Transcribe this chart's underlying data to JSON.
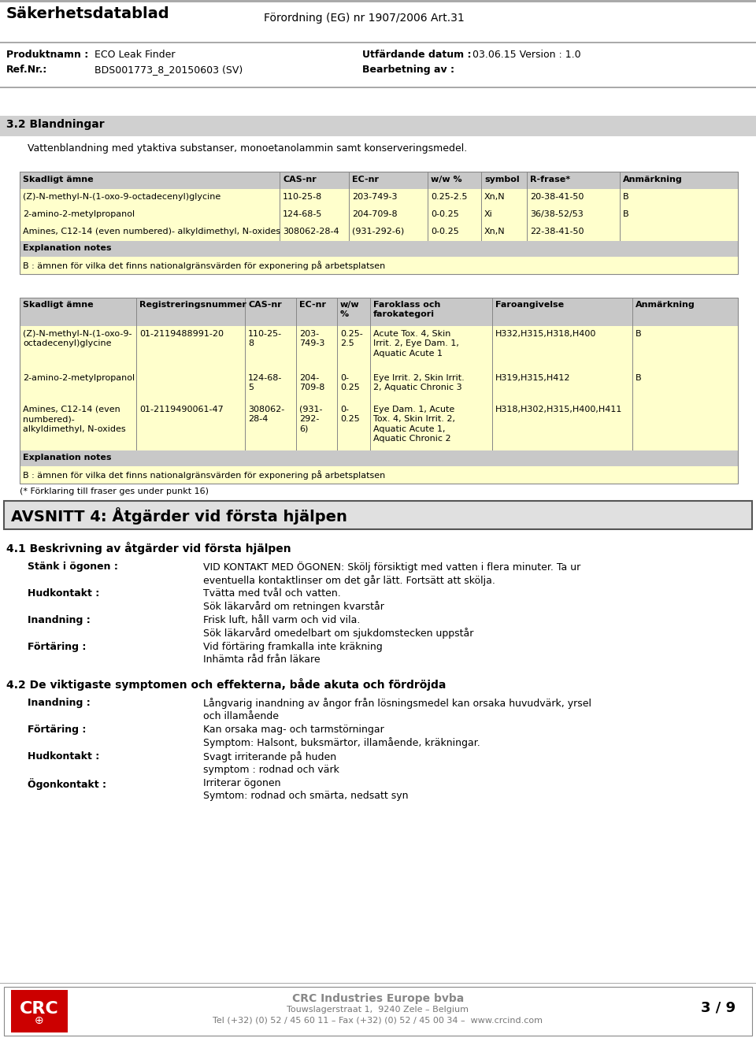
{
  "page_width": 9.6,
  "page_height": 13.18,
  "bg_color": "#ffffff",
  "header_title_left": "Säkerhetsdatablad",
  "header_title_right": "Förordning (EG) nr 1907/2006 Art.31",
  "product_label1": "Produktnamn :",
  "product_value1": "ECO Leak Finder",
  "date_label": "Utfärdande datum :",
  "date_value": "03.06.15 Version : 1.0",
  "ref_label": "Ref.Nr.:",
  "ref_value": "BDS001773_8_20150603 (SV)",
  "bearbetning_label": "Bearbetning av :",
  "section_32": "3.2 Blandningar",
  "intro_text": "Vattenblandning med ytaktiva substanser, monoetanolammin samt konserveringsmedel.",
  "table1_headers": [
    "Skadligt ämne",
    "CAS-nr",
    "EC-nr",
    "w/w %",
    "symbol",
    "R-frase*",
    "Anmärkning"
  ],
  "table1_rows": [
    [
      "(Z)-N-methyl-N-(1-oxo-9-octadecenyl)glycine",
      "110-25-8",
      "203-749-3",
      "0.25-2.5",
      "Xn,N",
      "20-38-41-50",
      "B"
    ],
    [
      "2-amino-2-metylpropanol",
      "124-68-5",
      "204-709-8",
      "0-0.25",
      "Xi",
      "36/38-52/53",
      "B"
    ],
    [
      "Amines, C12-14 (even numbered)- alkyldimethyl, N-oxides",
      "308062-28-4",
      "(931-292-6)",
      "0-0.25",
      "Xn,N",
      "22-38-41-50",
      ""
    ]
  ],
  "table1_note_header": "Explanation notes",
  "table1_note": "B : ämnen för vilka det finns nationalgränsvärden för exponering på arbetsplatsen",
  "table2_headers": [
    "Skadligt ämne",
    "Registreringsnummer",
    "CAS-nr",
    "EC-nr",
    "w/w\n%",
    "Faroklass och\nfarokategori",
    "Faroangivelse",
    "Anmärkning"
  ],
  "table2_note_header": "Explanation notes",
  "table2_note": "B : ämnen för vilka det finns nationalgränsvärden för exponering på arbetsplatsen",
  "table2_footnote": "(* Förklaring till fraser ges under punkt 16)",
  "section4_title": "AVSNITT 4: Åtgärder vid första hjälpen",
  "section41_title": "4.1 Beskrivning av åtgärder vid första hjälpen",
  "first_aid": [
    {
      "label": "Stänk i ögonen :",
      "text": "VID KONTAKT MED ÖGONEN: Skölj försiktigt med vatten i flera minuter. Ta ur\neventuella kontaktlinser om det går lätt. Fortsätt att skölja."
    },
    {
      "label": "Hudkontakt :",
      "text": "Tvätta med tvål och vatten.\nSök läkarvård om retningen kvarstår"
    },
    {
      "label": "Inandning :",
      "text": "Frisk luft, håll varm och vid vila.\nSök läkarvård omedelbart om sjukdomstecken uppstår"
    },
    {
      "label": "Förtäring :",
      "text": "Vid förtäring framkalla inte kräkning\nInhämta råd från läkare"
    }
  ],
  "section42_title": "4.2 De viktigaste symptomen och effekterna, både akuta och fördröjda",
  "symptoms": [
    {
      "label": "Inandning :",
      "text": "Långvarig inandning av ångor från lösningsmedel kan orsaka huvudvärk, yrsel\noch illamående"
    },
    {
      "label": "Förtäring :",
      "text": "Kan orsaka mag- och tarmstörningar\nSymptom: Halsont, buksmärtor, illamående, kräkningar."
    },
    {
      "label": "Hudkontakt :",
      "text": "Svagt irriterande på huden\nsymptom : rodnad och värk"
    },
    {
      "label": "Ögonkontakt :",
      "text": "Irriterar ögonen\nSymtom: rodnad och smärta, nedsatt syn"
    }
  ],
  "footer_company": "CRC Industries Europe bvba",
  "footer_address": "Touwslagerstraat 1,  9240 Zele – Belgium",
  "footer_contact": "Tel (+32) (0) 52 / 45 60 11 – Fax (+32) (0) 52 / 45 00 34 –  www.crcind.com",
  "footer_page": "3 / 9",
  "row_bg": "#ffffcc",
  "note_bg": "#c8c8c8",
  "section_bg": "#d0d0d0",
  "table_header_bg": "#c8c8c8",
  "avsnitt_bg": "#e0e0e0"
}
